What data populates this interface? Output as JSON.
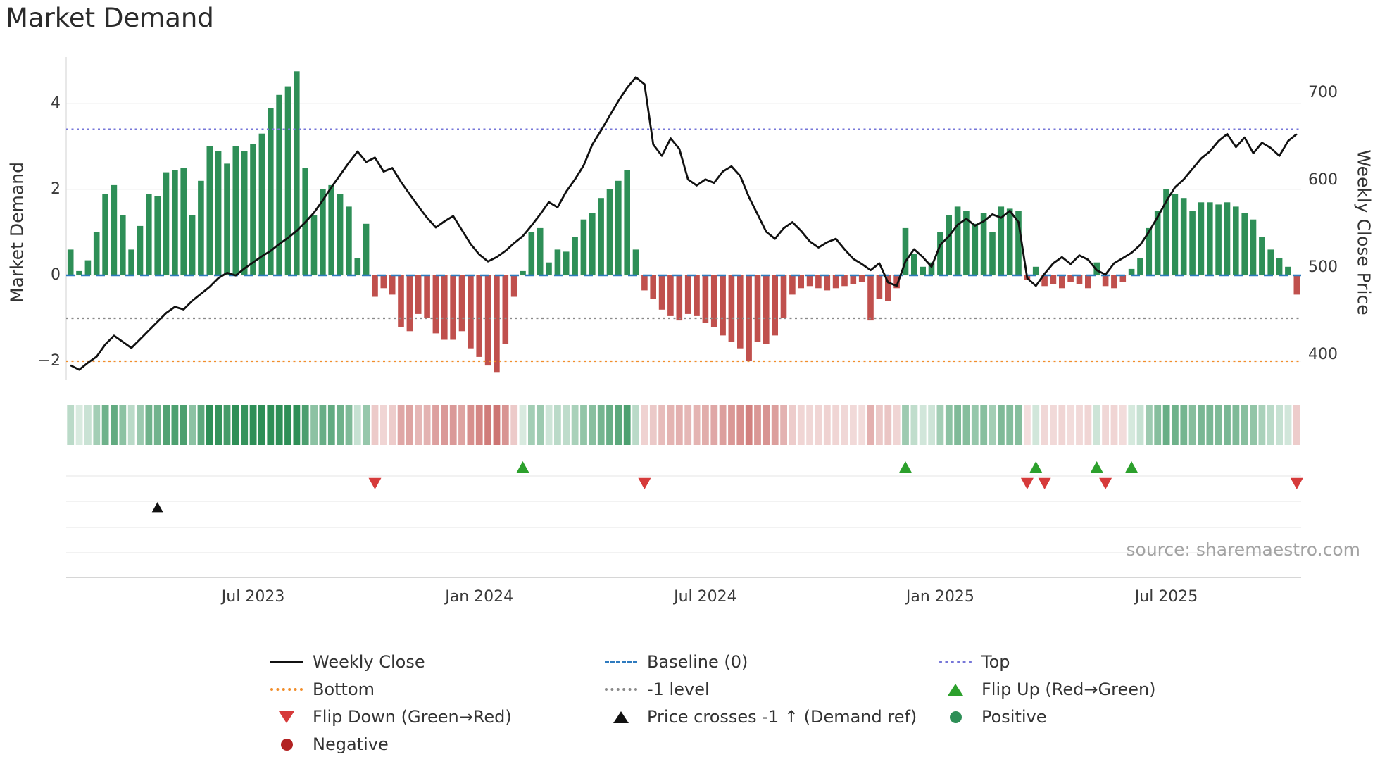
{
  "title": "Market Demand",
  "source_text": "source: sharemaestro.com",
  "axes": {
    "left_label": "Market Demand",
    "right_label": "Weekly Close Price",
    "left_ticks": [
      {
        "label": "4",
        "value": 4
      },
      {
        "label": "2",
        "value": 2
      },
      {
        "label": "0",
        "value": 0
      },
      {
        "label": "−2",
        "value": -2
      }
    ],
    "right_ticks": [
      {
        "label": "700",
        "value": 700
      },
      {
        "label": "600",
        "value": 600
      },
      {
        "label": "500",
        "value": 500
      },
      {
        "label": "400",
        "value": 400
      }
    ],
    "x_ticks": [
      "Jul 2023",
      "Jan 2024",
      "Jul 2024",
      "Jan 2025",
      "Jul 2025"
    ]
  },
  "colors": {
    "positive_bar": "#2e8f57",
    "negative_bar": "#c0504d",
    "price_line": "#111111",
    "baseline": "#2f7bbf",
    "top_line": "#7676d8",
    "bottom_line": "#f28e2b",
    "minus_one_line": "#8a8a8a",
    "flip_up_marker": "#2ca02c",
    "flip_down_marker": "#d63a3a",
    "price_cross_marker": "#111111",
    "positive_dot": "#2e8f57",
    "negative_dot": "#b22222"
  },
  "legend": {
    "position": "bottom-center",
    "items": [
      {
        "name": "weekly-close",
        "marker": "line",
        "dash": "solid",
        "color": "#111111",
        "label": "Weekly Close"
      },
      {
        "name": "baseline-0",
        "marker": "line",
        "dash": "dashed",
        "color": "#2f7bbf",
        "label": "Baseline (0)"
      },
      {
        "name": "top",
        "marker": "line",
        "dash": "dotted",
        "color": "#7676d8",
        "label": "Top"
      },
      {
        "name": "bottom",
        "marker": "line",
        "dash": "dotted",
        "color": "#f28e2b",
        "label": "Bottom"
      },
      {
        "name": "minus-1-level",
        "marker": "line",
        "dash": "dotted",
        "color": "#8a8a8a",
        "label": "-1 level"
      },
      {
        "name": "flip-up",
        "marker": "triangle-up",
        "color": "#2ca02c",
        "label": "Flip Up (Red→Green)"
      },
      {
        "name": "flip-down",
        "marker": "triangle-down",
        "color": "#d63a3a",
        "label": "Flip Down (Green→Red)"
      },
      {
        "name": "price-cross",
        "marker": "triangle-up",
        "color": "#111111",
        "label": "Price crosses -1 ↑ (Demand ref)"
      },
      {
        "name": "positive",
        "marker": "circle",
        "color": "#2e8f57",
        "label": "Positive"
      },
      {
        "name": "negative",
        "marker": "circle",
        "color": "#b22222",
        "label": "Negative"
      }
    ]
  },
  "chart_data": {
    "type": "bar+line combo with weekly signal heatmap strip and event-marker panel",
    "title": "Market Demand",
    "x_unit": "weekly",
    "x_start_date": "2023-02-06",
    "x_tick_labels": [
      "Jul 2023",
      "Jan 2024",
      "Jul 2024",
      "Jan 2025",
      "Jul 2025"
    ],
    "x_tick_weeks": [
      21,
      47,
      73,
      100,
      126
    ],
    "ylim_left": [
      -2.5,
      5.1
    ],
    "ylim_right": [
      370,
      742
    ],
    "grid": "off",
    "reference_lines": {
      "top": 3.4,
      "baseline": 0,
      "minus_one": -1,
      "bottom": -2
    },
    "series": [
      {
        "name": "Market Demand",
        "type": "bar",
        "axis": "left",
        "values": [
          0.6,
          0.1,
          0.35,
          1.0,
          1.9,
          2.1,
          1.4,
          0.6,
          1.15,
          1.9,
          1.85,
          2.4,
          2.45,
          2.5,
          1.4,
          2.2,
          3.0,
          2.9,
          2.6,
          3.0,
          2.9,
          3.05,
          3.3,
          3.9,
          4.2,
          4.4,
          4.75,
          2.5,
          1.4,
          2.0,
          2.1,
          1.9,
          1.6,
          0.4,
          1.2,
          -0.5,
          -0.3,
          -0.45,
          -1.2,
          -1.3,
          -0.9,
          -1.0,
          -1.35,
          -1.5,
          -1.5,
          -1.3,
          -1.7,
          -1.9,
          -2.1,
          -2.25,
          -1.6,
          -0.5,
          0.1,
          1.0,
          1.1,
          0.3,
          0.6,
          0.55,
          0.9,
          1.3,
          1.45,
          1.8,
          2.0,
          2.2,
          2.45,
          0.6,
          -0.35,
          -0.55,
          -0.8,
          -0.95,
          -1.05,
          -0.9,
          -0.95,
          -1.1,
          -1.2,
          -1.4,
          -1.55,
          -1.7,
          -2.0,
          -1.55,
          -1.6,
          -1.4,
          -1.0,
          -0.45,
          -0.3,
          -0.25,
          -0.3,
          -0.35,
          -0.3,
          -0.25,
          -0.2,
          -0.15,
          -1.05,
          -0.55,
          -0.6,
          -0.3,
          1.1,
          0.5,
          0.2,
          0.3,
          1.0,
          1.4,
          1.6,
          1.5,
          1.2,
          1.45,
          1.0,
          1.6,
          1.55,
          1.5,
          -0.1,
          0.2,
          -0.25,
          -0.2,
          -0.3,
          -0.15,
          -0.2,
          -0.3,
          0.3,
          -0.25,
          -0.3,
          -0.15,
          0.15,
          0.4,
          1.1,
          1.5,
          2.0,
          1.9,
          1.8,
          1.5,
          1.7,
          1.7,
          1.65,
          1.7,
          1.6,
          1.45,
          1.3,
          0.9,
          0.6,
          0.4,
          0.2,
          -0.45
        ]
      },
      {
        "name": "Weekly Close",
        "type": "line",
        "axis": "right",
        "values": [
          388,
          383,
          391,
          398,
          412,
          422,
          415,
          408,
          418,
          428,
          438,
          448,
          455,
          452,
          462,
          470,
          478,
          488,
          494,
          491,
          499,
          506,
          513,
          519,
          527,
          534,
          542,
          552,
          563,
          577,
          592,
          606,
          620,
          633,
          621,
          626,
          610,
          614,
          598,
          584,
          570,
          557,
          546,
          553,
          559,
          543,
          527,
          515,
          507,
          512,
          519,
          528,
          536,
          548,
          561,
          575,
          569,
          587,
          601,
          617,
          641,
          657,
          674,
          691,
          706,
          718,
          710,
          641,
          628,
          648,
          636,
          601,
          594,
          601,
          597,
          610,
          616,
          605,
          581,
          561,
          541,
          533,
          545,
          552,
          542,
          530,
          523,
          529,
          533,
          521,
          510,
          504,
          497,
          505,
          483,
          479,
          507,
          521,
          512,
          501,
          526,
          536,
          549,
          556,
          548,
          553,
          561,
          557,
          565,
          552,
          488,
          479,
          493,
          505,
          512,
          504,
          514,
          509,
          497,
          492,
          505,
          511,
          517,
          526,
          541,
          558,
          576,
          592,
          601,
          613,
          625,
          633,
          645,
          653,
          638,
          649,
          631,
          643,
          637,
          628,
          645,
          653
        ]
      }
    ],
    "heatmap": {
      "description": "strip below main chart: one cell per week, green when demand >= 0, red when < 0, opacity scales with |demand|",
      "source_series": "Market Demand"
    },
    "markers": {
      "flip_up": {
        "label": "Flip Up (Red→Green)",
        "weeks": [
          52,
          96,
          111,
          118,
          122
        ],
        "dates": [
          "2024-02-05",
          "2024-12-09",
          "2025-03-24",
          "2025-05-12",
          "2025-06-09"
        ]
      },
      "flip_down": {
        "label": "Flip Down (Green→Red)",
        "weeks": [
          35,
          66,
          110,
          112,
          119,
          141
        ],
        "dates": [
          "2023-10-09",
          "2024-05-13",
          "2025-03-17",
          "2025-03-31",
          "2025-05-19",
          "2025-10-20"
        ]
      },
      "price_cross": {
        "label": "Price crosses -1 ↑ (Demand ref)",
        "weeks": [
          10
        ],
        "dates": [
          "2023-04-17"
        ]
      }
    }
  }
}
